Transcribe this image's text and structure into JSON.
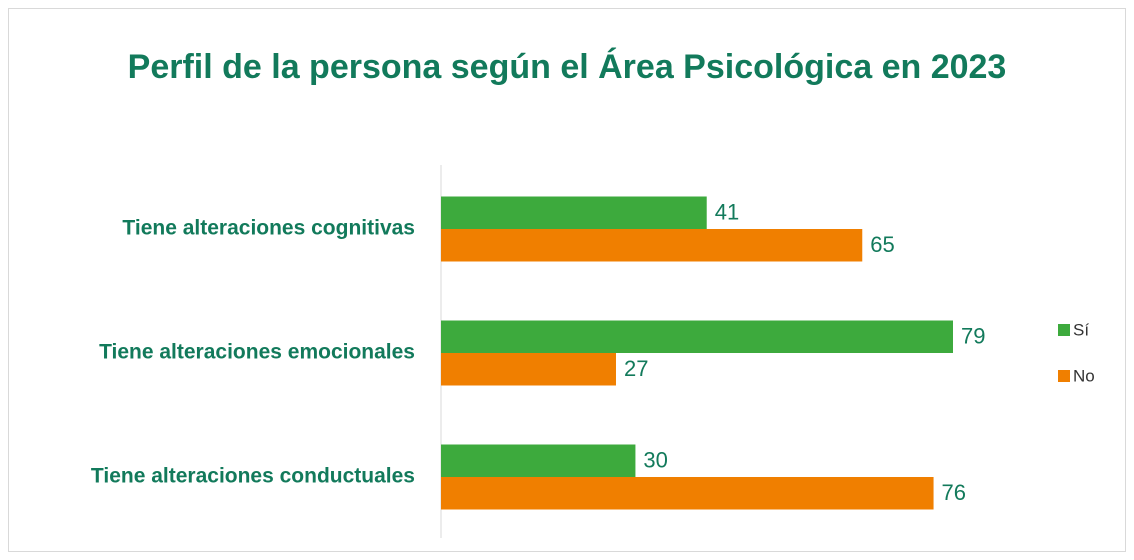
{
  "chart_data": {
    "type": "hbar",
    "title": "Perfil de la persona según el Área Psicológica en 2023",
    "categories": [
      "Tiene alteraciones cognitivas",
      "Tiene alteraciones emocionales",
      "Tiene alteraciones conductuales"
    ],
    "series": [
      {
        "name": "Sí",
        "color": "#3daa3d",
        "values": [
          41,
          79,
          30
        ]
      },
      {
        "name": "No",
        "color": "#f07f00",
        "values": [
          65,
          27,
          76
        ]
      }
    ],
    "legend": "right"
  }
}
